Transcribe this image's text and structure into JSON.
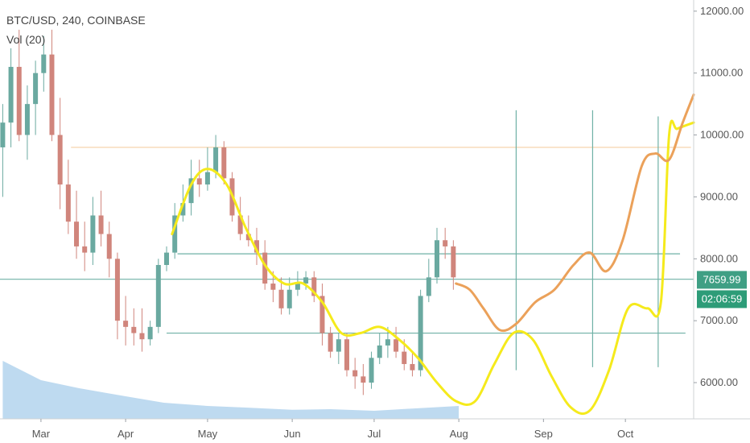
{
  "header": {
    "title": "BTC/USD, 240, COINBASE",
    "volume_label": "Vol (20)"
  },
  "colors": {
    "candle_up": "#6aa9a0",
    "candle_down": "#d0857c",
    "volume": "#a8cdeb",
    "yellow_path": "#f5ea1c",
    "orange_path": "#eba15a",
    "horizontal_line": "#6fb1a6",
    "resistance_line": "#f5cfa3",
    "price_badge": "#3f9f84",
    "countdown_badge": "#2d9c78"
  },
  "price_badge": {
    "value": 7659.99,
    "label": "7659.99"
  },
  "countdown_badge": {
    "label": "02:06:59"
  },
  "chart_data": {
    "type": "line",
    "title": "BTC/USD, 240, COINBASE",
    "x_ticks": [
      "Mar",
      "Apr",
      "May",
      "Jun",
      "Jul",
      "Aug",
      "Sep",
      "Oct"
    ],
    "y_ticks": [
      6000,
      7000,
      8000,
      9000,
      10000,
      11000,
      12000
    ],
    "y_tick_labels": [
      "6000.00",
      "7000.00",
      "8000.00",
      "9000.00",
      "10000.00",
      "11000.00",
      "12000.00"
    ],
    "ylim": [
      5480,
      12050
    ],
    "xlim": [
      "2018-02-14",
      "2018-10-26"
    ],
    "grid": false,
    "series": [
      {
        "kind": "candles",
        "x": [
          "2018-02-15",
          "2018-02-18",
          "2018-02-21",
          "2018-02-24",
          "2018-02-27",
          "2018-03-02",
          "2018-03-05",
          "2018-03-08",
          "2018-03-11",
          "2018-03-14",
          "2018-03-17",
          "2018-03-20",
          "2018-03-23",
          "2018-03-26",
          "2018-03-29",
          "2018-04-01",
          "2018-04-04",
          "2018-04-07",
          "2018-04-10",
          "2018-04-13",
          "2018-04-16",
          "2018-04-19",
          "2018-04-22",
          "2018-04-25",
          "2018-04-28",
          "2018-05-01",
          "2018-05-04",
          "2018-05-07",
          "2018-05-10",
          "2018-05-13",
          "2018-05-16",
          "2018-05-19",
          "2018-05-22",
          "2018-05-25",
          "2018-05-28",
          "2018-05-31",
          "2018-06-03",
          "2018-06-06",
          "2018-06-09",
          "2018-06-12",
          "2018-06-15",
          "2018-06-18",
          "2018-06-21",
          "2018-06-24",
          "2018-06-27",
          "2018-06-30",
          "2018-07-03",
          "2018-07-06",
          "2018-07-09",
          "2018-07-12",
          "2018-07-15",
          "2018-07-18",
          "2018-07-21",
          "2018-07-24",
          "2018-07-27",
          "2018-07-30"
        ],
        "open": [
          9800,
          10200,
          11100,
          10000,
          10500,
          11000,
          11300,
          10000,
          9200,
          8600,
          8200,
          8100,
          8700,
          8400,
          8000,
          7000,
          6900,
          6800,
          6700,
          6900,
          7900,
          8100,
          8700,
          8900,
          9300,
          9200,
          9400,
          9800,
          9300,
          8700,
          8400,
          8300,
          8100,
          7600,
          7500,
          7200,
          7500,
          7600,
          7700,
          7400,
          6800,
          6500,
          6700,
          6200,
          6100,
          6000,
          6400,
          6600,
          6700,
          6500,
          6300,
          6200,
          7400,
          7700,
          8300,
          8200
        ],
        "high": [
          10500,
          11400,
          11700,
          10800,
          11200,
          11600,
          11700,
          10600,
          9600,
          9100,
          8600,
          9000,
          9100,
          8600,
          8100,
          7400,
          7200,
          7200,
          7000,
          8000,
          8200,
          8900,
          9200,
          9600,
          9600,
          9800,
          10000,
          9900,
          9400,
          9000,
          8700,
          8500,
          8300,
          7800,
          7700,
          7700,
          7800,
          7800,
          7800,
          7600,
          6900,
          6800,
          6800,
          6400,
          6300,
          6500,
          6800,
          6900,
          6900,
          6700,
          6500,
          7500,
          8000,
          8500,
          8500,
          8300
        ],
        "low": [
          9000,
          9800,
          9900,
          9600,
          10000,
          10700,
          9900,
          8800,
          8400,
          8000,
          7800,
          7900,
          8200,
          7700,
          6700,
          6600,
          6600,
          6500,
          6600,
          6800,
          7800,
          8000,
          8600,
          8700,
          9000,
          9100,
          9300,
          9200,
          8600,
          8300,
          8200,
          7900,
          7500,
          7300,
          7100,
          7100,
          7400,
          7500,
          7300,
          6600,
          6400,
          6300,
          6100,
          5900,
          5800,
          5900,
          6300,
          6400,
          6400,
          6200,
          6100,
          6100,
          7300,
          7600,
          8000,
          7500
        ],
        "close": [
          10200,
          11100,
          10000,
          10500,
          11000,
          11300,
          10000,
          9200,
          8600,
          8200,
          8100,
          8700,
          8400,
          8000,
          7000,
          6900,
          6800,
          6700,
          6900,
          7900,
          8100,
          8700,
          8900,
          9300,
          9200,
          9400,
          9800,
          9300,
          8700,
          8400,
          8300,
          8100,
          7600,
          7500,
          7200,
          7500,
          7600,
          7700,
          7400,
          6800,
          6500,
          6700,
          6200,
          6100,
          6000,
          6400,
          6600,
          6700,
          6500,
          6300,
          6200,
          7400,
          7700,
          8300,
          8200,
          7700
        ]
      },
      {
        "kind": "volume",
        "x": [
          "2018-02-15",
          "2018-03-01",
          "2018-03-15",
          "2018-04-01",
          "2018-04-15",
          "2018-05-01",
          "2018-05-15",
          "2018-06-01",
          "2018-06-15",
          "2018-07-01",
          "2018-07-15",
          "2018-08-01"
        ],
        "values": [
          180,
          120,
          95,
          70,
          50,
          40,
          35,
          28,
          30,
          25,
          32,
          40
        ]
      },
      {
        "kind": "line",
        "style": "yellow",
        "x": [
          "2018-04-18",
          "2018-04-25",
          "2018-05-01",
          "2018-05-08",
          "2018-05-15",
          "2018-05-22",
          "2018-05-29",
          "2018-06-05",
          "2018-06-12",
          "2018-06-19",
          "2018-06-26",
          "2018-07-03",
          "2018-07-10",
          "2018-07-17",
          "2018-07-24",
          "2018-07-31",
          "2018-08-07",
          "2018-08-14",
          "2018-08-21",
          "2018-08-28",
          "2018-09-04",
          "2018-09-11",
          "2018-09-18",
          "2018-09-25",
          "2018-10-02",
          "2018-10-09",
          "2018-10-14",
          "2018-10-17",
          "2018-10-20",
          "2018-10-26"
        ],
        "y": [
          8400,
          9200,
          9450,
          9200,
          8500,
          7900,
          7600,
          7600,
          7300,
          6800,
          6800,
          6900,
          6700,
          6400,
          6000,
          5700,
          5700,
          6300,
          6800,
          6700,
          6100,
          5600,
          5550,
          6200,
          7200,
          7200,
          7300,
          10000,
          10100,
          10200
        ]
      },
      {
        "kind": "line",
        "style": "orange",
        "x": [
          "2018-07-31",
          "2018-08-05",
          "2018-08-10",
          "2018-08-16",
          "2018-08-22",
          "2018-08-29",
          "2018-09-05",
          "2018-09-12",
          "2018-09-18",
          "2018-09-24",
          "2018-09-30",
          "2018-10-07",
          "2018-10-12",
          "2018-10-17",
          "2018-10-22",
          "2018-10-26"
        ],
        "y": [
          7600,
          7500,
          7200,
          6850,
          6950,
          7300,
          7500,
          7900,
          8100,
          7800,
          8300,
          9500,
          9700,
          9600,
          10200,
          10650
        ]
      },
      {
        "kind": "hline",
        "y": 9800,
        "style": "resistance",
        "x_range": [
          "2018-03-12",
          "2018-10-25"
        ]
      },
      {
        "kind": "hline",
        "y": 8080,
        "style": "horizontal",
        "x_range": [
          "2018-04-20",
          "2018-10-21"
        ]
      },
      {
        "kind": "hline",
        "y": 7670,
        "style": "horizontal",
        "x_range": [
          "2018-02-14",
          "2018-10-26"
        ]
      },
      {
        "kind": "hline",
        "y": 6800,
        "style": "horizontal",
        "x_range": [
          "2018-04-16",
          "2018-10-23"
        ]
      },
      {
        "kind": "vline",
        "x": "2018-08-22",
        "y_range": [
          6200,
          10400
        ]
      },
      {
        "kind": "vline",
        "x": "2018-09-19",
        "y_range": [
          6250,
          10400
        ]
      },
      {
        "kind": "vline",
        "x": "2018-10-13",
        "y_range": [
          6250,
          10300
        ]
      }
    ]
  }
}
